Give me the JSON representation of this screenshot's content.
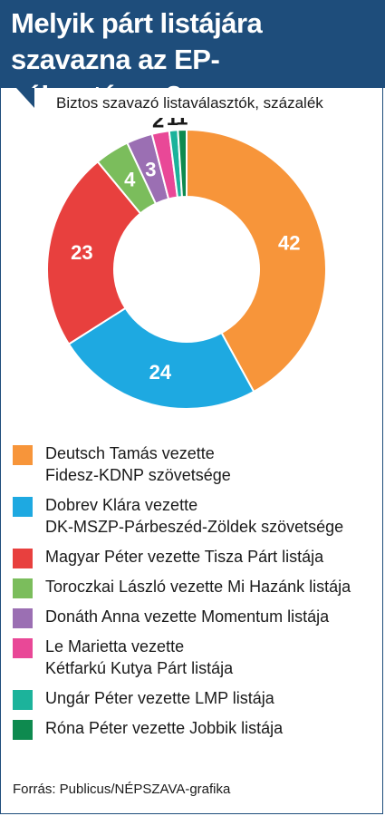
{
  "header": {
    "title_line1": "Melyik párt listájára",
    "title_line2": "szavazna az EP-választáson?"
  },
  "subtitle": "Biztos szavazó listaválasztók, százalék",
  "source": "Forrás: Publicus/NÉPSZAVA-grafika",
  "chart_data": {
    "type": "pie",
    "style": "donut",
    "title": "Melyik párt listájára szavazna az EP-választáson?",
    "subtitle": "Biztos szavazó listaválasztók, százalék",
    "legend_position": "bottom",
    "slices": [
      {
        "label": "Deutsch Tamás vezette Fidesz-KDNP szövetsége",
        "line1": "Deutsch Tamás vezette",
        "line2": "Fidesz-KDNP szövetsége",
        "value": 42,
        "value_label": "42",
        "color": "#f7953a"
      },
      {
        "label": "Dobrev Klára vezette DK-MSZP-Párbeszéd-Zöldek szövetsége",
        "line1": "Dobrev Klára vezette",
        "line2": "DK-MSZP-Párbeszéd-Zöldek szövetsége",
        "value": 24,
        "value_label": "24",
        "color": "#1ea9e1"
      },
      {
        "label": "Magyar Péter vezette Tisza Párt listája",
        "line1": "Magyar Péter vezette Tisza Párt listája",
        "line2": "",
        "value": 23,
        "value_label": "23",
        "color": "#e8403e"
      },
      {
        "label": "Toroczkai László vezette Mi Hazánk listája",
        "line1": "Toroczkai László vezette Mi Hazánk listája",
        "line2": "",
        "value": 4,
        "value_label": "4",
        "color": "#7bbd5c"
      },
      {
        "label": "Donáth Anna vezette Momentum listája",
        "line1": "Donáth Anna vezette Momentum listája",
        "line2": "",
        "value": 3,
        "value_label": "3",
        "color": "#9b6fb3"
      },
      {
        "label": "Le Marietta vezette Kétfarkú Kutya Párt listája",
        "line1": "Le Marietta vezette",
        "line2": "Kétfarkú Kutya Párt listája",
        "value": 2,
        "value_label": "2",
        "color": "#e94897"
      },
      {
        "label": "Ungár Péter vezette LMP listája",
        "line1": "Ungár Péter vezette LMP listája",
        "line2": "",
        "value": 1,
        "value_label": "1",
        "color": "#1cb39b"
      },
      {
        "label": "Róna Péter vezette Jobbik listája",
        "line1": "Róna Péter vezette Jobbik listája",
        "line2": "",
        "value": 1,
        "value_label": "1",
        "color": "#0e8a4f"
      }
    ]
  }
}
